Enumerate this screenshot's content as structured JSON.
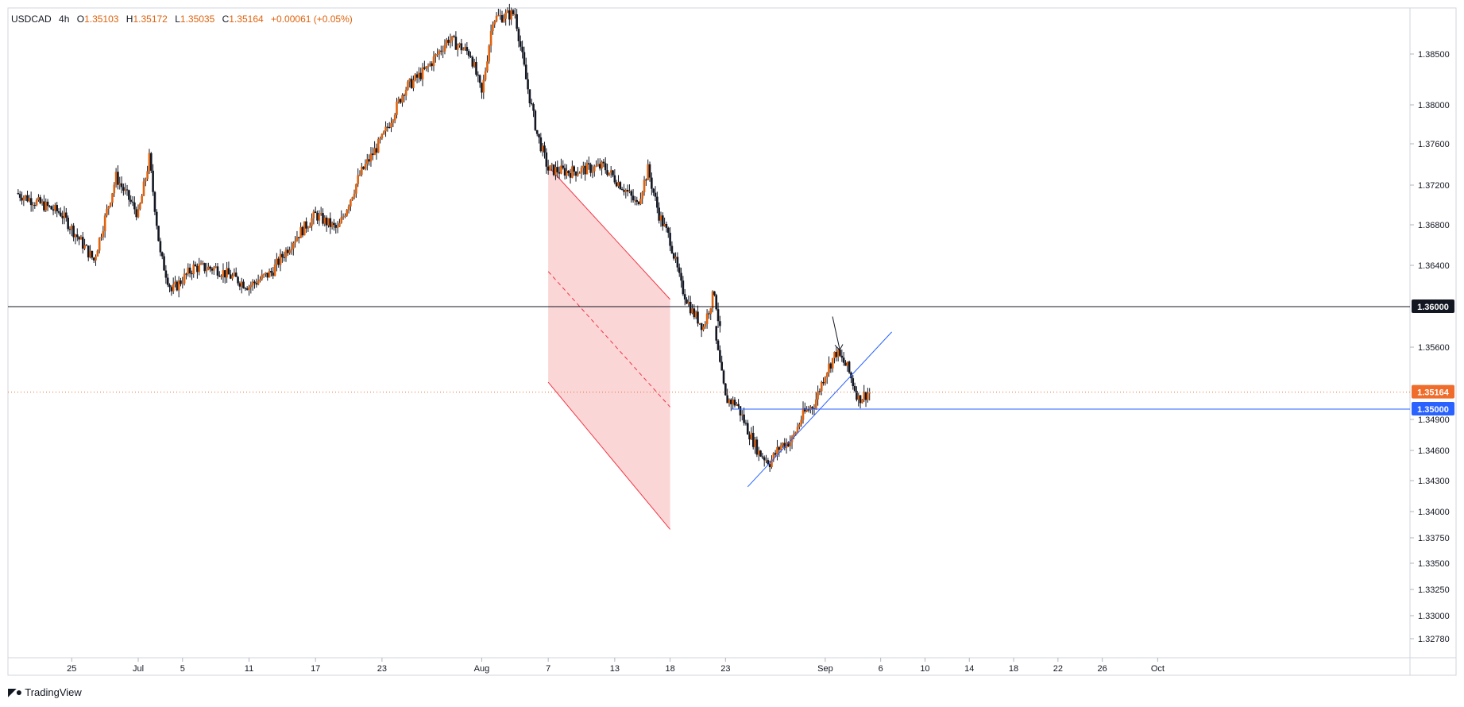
{
  "legend": {
    "symbol": "USDCAD",
    "timeframe": "4h",
    "open_label": "O",
    "open": "1.35103",
    "high_label": "H",
    "high": "1.35172",
    "low_label": "L",
    "low": "1.35035",
    "close_label": "C",
    "close": "1.35164",
    "change": "+0.00061 (+0.05%)"
  },
  "brand": {
    "name": "TradingView"
  },
  "colors": {
    "candle": "#131722",
    "wick": "#131722",
    "legend_value": "#e0620d",
    "channel_fill": "#f8c8ca",
    "channel_line": "#f23645",
    "trendline": "#2962ff",
    "price_badge": "#f7525f",
    "price_badge_orange": "#ef6c2b",
    "level_badge_black": "#131722",
    "level_badge_blue": "#2962ff"
  },
  "chart_data": {
    "type": "candlestick",
    "symbol": "USDCAD",
    "interval": "4h",
    "y_ticks": [
      "1.38500",
      "1.38000",
      "1.37600",
      "1.37200",
      "1.36800",
      "1.36400",
      "1.35600",
      "1.34900",
      "1.34600",
      "1.34300",
      "1.34000",
      "1.33750",
      "1.33500",
      "1.33250",
      "1.33000",
      "1.32780"
    ],
    "x_ticks": [
      "25",
      "Jul",
      "5",
      "11",
      "17",
      "23",
      "Aug",
      "7",
      "13",
      "18",
      "23",
      "Sep",
      "6",
      "10",
      "14",
      "18",
      "22",
      "26",
      "Oct"
    ],
    "price_labels": [
      {
        "value": "1.36000",
        "style": "black"
      },
      {
        "value": "1.35164",
        "style": "orange",
        "role": "last-price"
      },
      {
        "value": "1.35000",
        "style": "blue"
      }
    ],
    "horizontal_levels": [
      1.36,
      1.35
    ],
    "last_price": 1.35164,
    "channel": {
      "upper_start": [
        7,
        1.3738
      ],
      "upper_end": [
        18,
        1.3607
      ],
      "mid_start": [
        7,
        1.3634
      ],
      "mid_end": [
        18,
        1.3502
      ],
      "lower_start": [
        7,
        1.3526
      ],
      "lower_end": [
        18,
        1.3383
      ]
    },
    "trendline": {
      "start": [
        25,
        1.3424
      ],
      "end": [
        38,
        1.3575
      ]
    },
    "anchors": [
      {
        "date": "Jun 20",
        "price": 1.3712
      },
      {
        "date": "Jun 24",
        "price": 1.3692
      },
      {
        "date": "Jun 27",
        "price": 1.3645
      },
      {
        "date": "Jun 29",
        "price": 1.3728
      },
      {
        "date": "Jul 1",
        "price": 1.369
      },
      {
        "date": "Jul 2",
        "price": 1.3746
      },
      {
        "date": "Jul 3",
        "price": 1.365
      },
      {
        "date": "Jul 4",
        "price": 1.3615
      },
      {
        "date": "Jul 6",
        "price": 1.3638
      },
      {
        "date": "Jul 8",
        "price": 1.3637
      },
      {
        "date": "Jul 11",
        "price": 1.362
      },
      {
        "date": "Jul 13",
        "price": 1.3633
      },
      {
        "date": "Jul 15",
        "price": 1.3665
      },
      {
        "date": "Jul 17",
        "price": 1.369
      },
      {
        "date": "Jul 19",
        "price": 1.3675
      },
      {
        "date": "Jul 21",
        "price": 1.373
      },
      {
        "date": "Jul 23",
        "price": 1.3765
      },
      {
        "date": "Jul 25",
        "price": 1.3815
      },
      {
        "date": "Jul 27",
        "price": 1.3835
      },
      {
        "date": "Jul 29",
        "price": 1.3865
      },
      {
        "date": "Jul 31",
        "price": 1.385
      },
      {
        "date": "Aug 1",
        "price": 1.381
      },
      {
        "date": "Aug 2",
        "price": 1.3885
      },
      {
        "date": "Aug 4",
        "price": 1.389
      },
      {
        "date": "Aug 5",
        "price": 1.3825
      },
      {
        "date": "Aug 6",
        "price": 1.377
      },
      {
        "date": "Aug 7",
        "price": 1.3735
      },
      {
        "date": "Aug 9",
        "price": 1.3733
      },
      {
        "date": "Aug 12",
        "price": 1.3738
      },
      {
        "date": "Aug 14",
        "price": 1.3715
      },
      {
        "date": "Aug 15",
        "price": 1.37
      },
      {
        "date": "Aug 16",
        "price": 1.3735
      },
      {
        "date": "Aug 17",
        "price": 1.369
      },
      {
        "date": "Aug 18",
        "price": 1.3665
      },
      {
        "date": "Aug 19",
        "price": 1.362
      },
      {
        "date": "Aug 20",
        "price": 1.3595
      },
      {
        "date": "Aug 21",
        "price": 1.358
      },
      {
        "date": "Aug 22",
        "price": 1.3615
      },
      {
        "date": "Aug 22",
        "price": 1.3575
      },
      {
        "date": "Aug 23",
        "price": 1.351
      },
      {
        "date": "Aug 24",
        "price": 1.3505
      },
      {
        "date": "Aug 25",
        "price": 1.348
      },
      {
        "date": "Aug 26",
        "price": 1.3458
      },
      {
        "date": "Aug 27",
        "price": 1.3448
      },
      {
        "date": "Aug 28",
        "price": 1.3465
      },
      {
        "date": "Aug 29",
        "price": 1.347
      },
      {
        "date": "Aug 30",
        "price": 1.3495
      },
      {
        "date": "Aug 31",
        "price": 1.3505
      },
      {
        "date": "Sep 1",
        "price": 1.3535
      },
      {
        "date": "Sep 2",
        "price": 1.3555
      },
      {
        "date": "Sep 3",
        "price": 1.354
      },
      {
        "date": "Sep 4",
        "price": 1.351
      },
      {
        "date": "Sep 5",
        "price": 1.35164
      }
    ]
  }
}
